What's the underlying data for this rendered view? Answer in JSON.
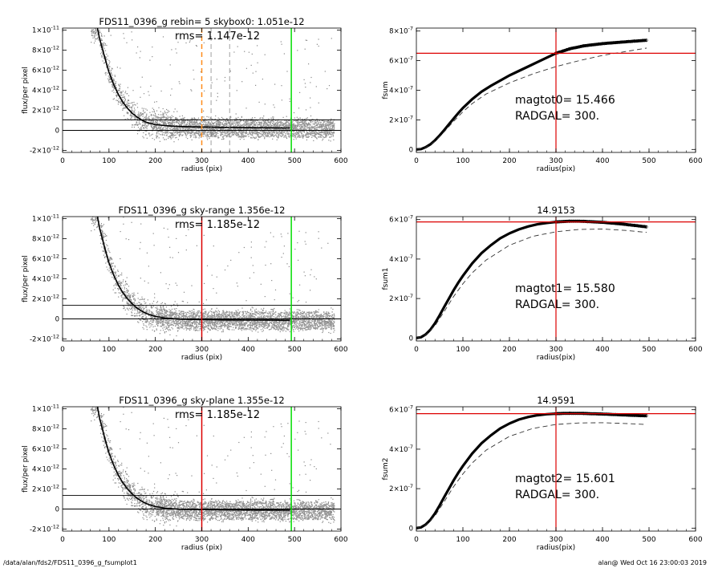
{
  "footer": {
    "path": "/data/alan/fds2/FDS11_0396_g_fsumplot1",
    "user_time": "alan@  Wed Oct 16 23:00:03 2019"
  },
  "chart_data": [
    {
      "type": "scatter",
      "panel": "profile-1",
      "title": "FDS11_0396_g rebin= 5    skybox0:  1.051e-12",
      "annotation": "rms= 1.147e-12",
      "xlabel": "radius (pix)",
      "ylabel": "flux/per pixel",
      "xlim": [
        0,
        600
      ],
      "ylim": [
        -2.2e-12,
        1.02e-11
      ],
      "xticks": [
        0,
        100,
        200,
        300,
        400,
        500,
        600
      ],
      "yticks": [
        {
          "v": 1e-11,
          "b": "1×10",
          "e": "-11"
        },
        {
          "v": 8e-12,
          "b": "8×10",
          "e": "-12"
        },
        {
          "v": 6e-12,
          "b": "6×10",
          "e": "-12"
        },
        {
          "v": 4e-12,
          "b": "4×10",
          "e": "-12"
        },
        {
          "v": 2e-12,
          "b": "2×10",
          "e": "-12"
        },
        {
          "v": 0,
          "b": "0",
          "e": ""
        },
        {
          "v": -2e-12,
          "b": "-2×10",
          "e": "-12"
        }
      ],
      "profile": [
        [
          75,
          1.02e-11
        ],
        [
          80,
          9.1e-12
        ],
        [
          90,
          7.4e-12
        ],
        [
          100,
          5.8e-12
        ],
        [
          110,
          4.6e-12
        ],
        [
          120,
          3.6e-12
        ],
        [
          130,
          2.8e-12
        ],
        [
          140,
          2.2e-12
        ],
        [
          150,
          1.7e-12
        ],
        [
          160,
          1.35e-12
        ],
        [
          170,
          1.05e-12
        ],
        [
          180,
          8.2e-13
        ],
        [
          190,
          6.8e-13
        ],
        [
          200,
          5.8e-13
        ],
        [
          220,
          4.8e-13
        ],
        [
          240,
          4.2e-13
        ],
        [
          260,
          3.8e-13
        ],
        [
          300,
          3.4e-13
        ],
        [
          350,
          3e-13
        ],
        [
          400,
          2.7e-13
        ],
        [
          450,
          2.5e-13
        ],
        [
          490,
          2.4e-13
        ]
      ],
      "hlines": [
        {
          "y": 1.051e-12,
          "color": "#000000"
        },
        {
          "y": 0,
          "color": "#000000"
        }
      ],
      "vlines": [
        {
          "x": 300,
          "color": "#ff8c1a",
          "dash": true
        },
        {
          "x": 320,
          "color": "#888888",
          "dash": true
        },
        {
          "x": 360,
          "color": "#888888",
          "dash": true
        },
        {
          "x": 493,
          "color": "#00dd00",
          "dash": false
        }
      ],
      "scatter_color": "#888888"
    },
    {
      "type": "line",
      "panel": "growth-1",
      "title": "",
      "xlabel": "radius(pix)",
      "ylabel": "fsum",
      "xlim": [
        0,
        600
      ],
      "ylim": [
        -2e-08,
        8.2e-07
      ],
      "xticks": [
        0,
        100,
        200,
        300,
        400,
        500,
        600
      ],
      "yticks": [
        {
          "v": 8e-07,
          "b": "8×10",
          "e": "-7"
        },
        {
          "v": 6e-07,
          "b": "6×10",
          "e": "-7"
        },
        {
          "v": 4e-07,
          "b": "4×10",
          "e": "-7"
        },
        {
          "v": 2e-07,
          "b": "2×10",
          "e": "-7"
        },
        {
          "v": 0,
          "b": "0",
          "e": ""
        }
      ],
      "curve": [
        [
          0,
          0
        ],
        [
          10,
          3e-09
        ],
        [
          20,
          1.5e-08
        ],
        [
          30,
          3.5e-08
        ],
        [
          40,
          6.2e-08
        ],
        [
          50,
          9.5e-08
        ],
        [
          60,
          1.32e-07
        ],
        [
          70,
          1.7e-07
        ],
        [
          80,
          2.08e-07
        ],
        [
          90,
          2.45e-07
        ],
        [
          100,
          2.8e-07
        ],
        [
          120,
          3.4e-07
        ],
        [
          140,
          3.9e-07
        ],
        [
          160,
          4.3e-07
        ],
        [
          180,
          4.65e-07
        ],
        [
          200,
          5e-07
        ],
        [
          220,
          5.3e-07
        ],
        [
          240,
          5.6e-07
        ],
        [
          260,
          5.9e-07
        ],
        [
          280,
          6.2e-07
        ],
        [
          300,
          6.5e-07
        ],
        [
          330,
          6.8e-07
        ],
        [
          360,
          7e-07
        ],
        [
          400,
          7.15e-07
        ],
        [
          440,
          7.25e-07
        ],
        [
          470,
          7.32e-07
        ],
        [
          495,
          7.38e-07
        ]
      ],
      "dashed": [
        [
          0,
          0
        ],
        [
          20,
          1.3e-08
        ],
        [
          40,
          5.5e-08
        ],
        [
          60,
          1.2e-07
        ],
        [
          80,
          1.9e-07
        ],
        [
          100,
          2.55e-07
        ],
        [
          120,
          3.1e-07
        ],
        [
          150,
          3.75e-07
        ],
        [
          200,
          4.5e-07
        ],
        [
          250,
          5.1e-07
        ],
        [
          300,
          5.6e-07
        ],
        [
          350,
          6e-07
        ],
        [
          400,
          6.35e-07
        ],
        [
          450,
          6.62e-07
        ],
        [
          495,
          6.85e-07
        ]
      ],
      "hline": 6.5e-07,
      "vline": 300,
      "annotations": [
        "magtot0=  15.466",
        "RADGAL=    300."
      ],
      "marker_start": 300
    },
    {
      "type": "scatter",
      "panel": "profile-2",
      "title": "FDS11_0396_g sky-range  1.356e-12",
      "annotation": "rms= 1.185e-12",
      "xlabel": "radius (pix)",
      "ylabel": "flux/per pixel",
      "xlim": [
        0,
        600
      ],
      "ylim": [
        -2.2e-12,
        1.02e-11
      ],
      "xticks": [
        0,
        100,
        200,
        300,
        400,
        500,
        600
      ],
      "yticks": [
        {
          "v": 1e-11,
          "b": "1×10",
          "e": "-11"
        },
        {
          "v": 8e-12,
          "b": "8×10",
          "e": "-12"
        },
        {
          "v": 6e-12,
          "b": "6×10",
          "e": "-12"
        },
        {
          "v": 4e-12,
          "b": "4×10",
          "e": "-12"
        },
        {
          "v": 2e-12,
          "b": "2×10",
          "e": "-12"
        },
        {
          "v": 0,
          "b": "0",
          "e": ""
        },
        {
          "v": -2e-12,
          "b": "-2×10",
          "e": "-12"
        }
      ],
      "profile": [
        [
          75,
          1.02e-11
        ],
        [
          80,
          9e-12
        ],
        [
          90,
          7.2e-12
        ],
        [
          100,
          5.6e-12
        ],
        [
          110,
          4.4e-12
        ],
        [
          120,
          3.4e-12
        ],
        [
          130,
          2.6e-12
        ],
        [
          140,
          2e-12
        ],
        [
          150,
          1.5e-12
        ],
        [
          160,
          1.1e-12
        ],
        [
          170,
          8e-13
        ],
        [
          180,
          5.5e-13
        ],
        [
          190,
          3.8e-13
        ],
        [
          200,
          2.5e-13
        ],
        [
          220,
          1e-13
        ],
        [
          240,
          2e-14
        ],
        [
          260,
          -3e-14
        ],
        [
          300,
          -6e-14
        ],
        [
          350,
          -1e-13
        ],
        [
          400,
          -1.2e-13
        ],
        [
          450,
          -1.3e-13
        ],
        [
          490,
          -1.4e-13
        ]
      ],
      "hlines": [
        {
          "y": 1.356e-12,
          "color": "#000000"
        },
        {
          "y": 0,
          "color": "#000000"
        }
      ],
      "vlines": [
        {
          "x": 300,
          "color": "#dd0000",
          "dash": false
        },
        {
          "x": 493,
          "color": "#00dd00",
          "dash": false
        }
      ],
      "scatter_color": "#888888"
    },
    {
      "type": "line",
      "panel": "growth-2",
      "title": "14.9153",
      "xlabel": "radius(pix)",
      "ylabel": "fsum1",
      "xlim": [
        0,
        600
      ],
      "ylim": [
        -1.5e-08,
        6.15e-07
      ],
      "xticks": [
        0,
        100,
        200,
        300,
        400,
        500,
        600
      ],
      "yticks": [
        {
          "v": 6e-07,
          "b": "6×10",
          "e": "-7"
        },
        {
          "v": 4e-07,
          "b": "4×10",
          "e": "-7"
        },
        {
          "v": 2e-07,
          "b": "2×10",
          "e": "-7"
        },
        {
          "v": 0,
          "b": "0",
          "e": ""
        }
      ],
      "curve": [
        [
          0,
          0
        ],
        [
          10,
          4e-09
        ],
        [
          20,
          1.8e-08
        ],
        [
          30,
          4.2e-08
        ],
        [
          40,
          7.5e-08
        ],
        [
          50,
          1.15e-07
        ],
        [
          60,
          1.58e-07
        ],
        [
          70,
          2e-07
        ],
        [
          80,
          2.42e-07
        ],
        [
          90,
          2.8e-07
        ],
        [
          100,
          3.15e-07
        ],
        [
          120,
          3.78e-07
        ],
        [
          140,
          4.3e-07
        ],
        [
          160,
          4.7e-07
        ],
        [
          180,
          5.05e-07
        ],
        [
          200,
          5.3e-07
        ],
        [
          220,
          5.5e-07
        ],
        [
          240,
          5.65e-07
        ],
        [
          260,
          5.76e-07
        ],
        [
          280,
          5.83e-07
        ],
        [
          300,
          5.88e-07
        ],
        [
          330,
          5.92e-07
        ],
        [
          360,
          5.91e-07
        ],
        [
          400,
          5.86e-07
        ],
        [
          440,
          5.78e-07
        ],
        [
          470,
          5.7e-07
        ],
        [
          495,
          5.63e-07
        ]
      ],
      "dashed": [
        [
          0,
          0
        ],
        [
          20,
          1.5e-08
        ],
        [
          40,
          6.2e-08
        ],
        [
          60,
          1.35e-07
        ],
        [
          80,
          2.1e-07
        ],
        [
          100,
          2.75e-07
        ],
        [
          120,
          3.3e-07
        ],
        [
          150,
          3.95e-07
        ],
        [
          200,
          4.7e-07
        ],
        [
          250,
          5.15e-07
        ],
        [
          300,
          5.38e-07
        ],
        [
          350,
          5.5e-07
        ],
        [
          400,
          5.52e-07
        ],
        [
          450,
          5.45e-07
        ],
        [
          495,
          5.35e-07
        ]
      ],
      "hline": 5.88e-07,
      "vline": 300,
      "annotations": [
        "magtot1=  15.580",
        "RADGAL=    300."
      ],
      "marker_start": 300
    },
    {
      "type": "scatter",
      "panel": "profile-3",
      "title": "FDS11_0396_g sky-plane  1.355e-12",
      "annotation": "rms= 1.185e-12",
      "xlabel": "radius (pix)",
      "ylabel": "flux/per pixel",
      "xlim": [
        0,
        600
      ],
      "ylim": [
        -2.2e-12,
        1.02e-11
      ],
      "xticks": [
        0,
        100,
        200,
        300,
        400,
        500,
        600
      ],
      "yticks": [
        {
          "v": 1e-11,
          "b": "1×10",
          "e": "-11"
        },
        {
          "v": 8e-12,
          "b": "8×10",
          "e": "-12"
        },
        {
          "v": 6e-12,
          "b": "6×10",
          "e": "-12"
        },
        {
          "v": 4e-12,
          "b": "4×10",
          "e": "-12"
        },
        {
          "v": 2e-12,
          "b": "2×10",
          "e": "-12"
        },
        {
          "v": 0,
          "b": "0",
          "e": ""
        },
        {
          "v": -2e-12,
          "b": "-2×10",
          "e": "-12"
        }
      ],
      "profile": [
        [
          75,
          1.02e-11
        ],
        [
          80,
          9e-12
        ],
        [
          90,
          7.2e-12
        ],
        [
          100,
          5.6e-12
        ],
        [
          110,
          4.4e-12
        ],
        [
          120,
          3.4e-12
        ],
        [
          130,
          2.6e-12
        ],
        [
          140,
          2e-12
        ],
        [
          150,
          1.5e-12
        ],
        [
          160,
          1.1e-12
        ],
        [
          170,
          8e-13
        ],
        [
          180,
          5.5e-13
        ],
        [
          190,
          3.8e-13
        ],
        [
          200,
          2.5e-13
        ],
        [
          220,
          1e-13
        ],
        [
          240,
          2e-14
        ],
        [
          260,
          -3e-14
        ],
        [
          300,
          -5e-14
        ],
        [
          350,
          -8e-14
        ],
        [
          400,
          -1e-13
        ],
        [
          450,
          -1.1e-13
        ],
        [
          490,
          -1.2e-13
        ]
      ],
      "hlines": [
        {
          "y": 1.355e-12,
          "color": "#000000"
        },
        {
          "y": 0,
          "color": "#000000"
        }
      ],
      "vlines": [
        {
          "x": 300,
          "color": "#dd0000",
          "dash": false
        },
        {
          "x": 493,
          "color": "#00dd00",
          "dash": false
        }
      ],
      "scatter_color": "#888888"
    },
    {
      "type": "line",
      "panel": "growth-3",
      "title": "14.9591",
      "xlabel": "radius(pix)",
      "ylabel": "fsum2",
      "xlim": [
        0,
        600
      ],
      "ylim": [
        -1.5e-08,
        6.15e-07
      ],
      "xticks": [
        0,
        100,
        200,
        300,
        400,
        500,
        600
      ],
      "yticks": [
        {
          "v": 6e-07,
          "b": "6×10",
          "e": "-7"
        },
        {
          "v": 4e-07,
          "b": "4×10",
          "e": "-7"
        },
        {
          "v": 2e-07,
          "b": "2×10",
          "e": "-7"
        },
        {
          "v": 0,
          "b": "0",
          "e": ""
        }
      ],
      "curve": [
        [
          0,
          0
        ],
        [
          10,
          4e-09
        ],
        [
          20,
          1.8e-08
        ],
        [
          30,
          4.2e-08
        ],
        [
          40,
          7.5e-08
        ],
        [
          50,
          1.15e-07
        ],
        [
          60,
          1.58e-07
        ],
        [
          70,
          2e-07
        ],
        [
          80,
          2.42e-07
        ],
        [
          90,
          2.8e-07
        ],
        [
          100,
          3.15e-07
        ],
        [
          120,
          3.78e-07
        ],
        [
          140,
          4.3e-07
        ],
        [
          160,
          4.7e-07
        ],
        [
          180,
          5.05e-07
        ],
        [
          200,
          5.3e-07
        ],
        [
          220,
          5.5e-07
        ],
        [
          240,
          5.63e-07
        ],
        [
          260,
          5.72e-07
        ],
        [
          280,
          5.77e-07
        ],
        [
          300,
          5.8e-07
        ],
        [
          330,
          5.82e-07
        ],
        [
          360,
          5.81e-07
        ],
        [
          400,
          5.78e-07
        ],
        [
          440,
          5.74e-07
        ],
        [
          470,
          5.71e-07
        ],
        [
          495,
          5.69e-07
        ]
      ],
      "dashed": [
        [
          0,
          0
        ],
        [
          20,
          1.5e-08
        ],
        [
          40,
          6.2e-08
        ],
        [
          60,
          1.35e-07
        ],
        [
          80,
          2.1e-07
        ],
        [
          100,
          2.75e-07
        ],
        [
          120,
          3.3e-07
        ],
        [
          150,
          3.95e-07
        ],
        [
          200,
          4.65e-07
        ],
        [
          250,
          5.05e-07
        ],
        [
          300,
          5.25e-07
        ],
        [
          350,
          5.33e-07
        ],
        [
          400,
          5.34e-07
        ],
        [
          450,
          5.3e-07
        ],
        [
          495,
          5.25e-07
        ]
      ],
      "hline": 5.8e-07,
      "vline": 300,
      "annotations": [
        "magtot2=  15.601",
        "RADGAL=    300."
      ],
      "marker_start": 300
    }
  ]
}
